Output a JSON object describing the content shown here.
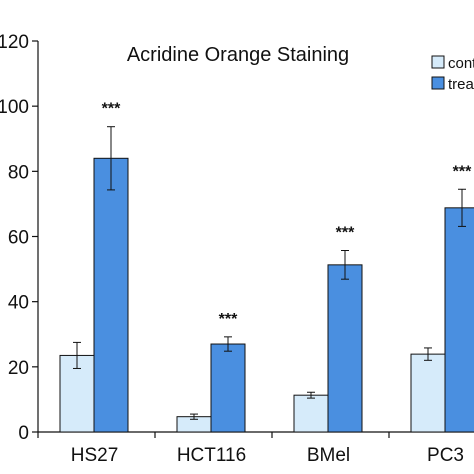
{
  "chart_data": {
    "type": "bar",
    "title": "Acridine Orange Staining",
    "xlabel": "",
    "ylabel": "",
    "categories": [
      "HS27",
      "HCT116",
      "BMel",
      "PC3"
    ],
    "ylim": [
      0,
      120
    ],
    "yticks": [
      0,
      20,
      40,
      60,
      80,
      100,
      120
    ],
    "ytick_labels": [
      "0",
      "20",
      "40",
      "60",
      "80",
      "100",
      "120"
    ],
    "grid": false,
    "legend_position": "top-right",
    "series": [
      {
        "name": "control",
        "color": "#d6ebfa",
        "values": [
          23.5,
          4.7,
          11.3,
          23.9
        ],
        "errors": [
          4.0,
          0.8,
          0.9,
          1.9
        ],
        "annotations": [
          "",
          "",
          "",
          ""
        ]
      },
      {
        "name": "treated",
        "color": "#4a8fe0",
        "values": [
          84.0,
          27.0,
          51.3,
          68.8
        ],
        "errors": [
          9.7,
          2.2,
          4.4,
          5.7
        ],
        "annotations": [
          "***",
          "***",
          "***",
          "***"
        ]
      }
    ]
  }
}
